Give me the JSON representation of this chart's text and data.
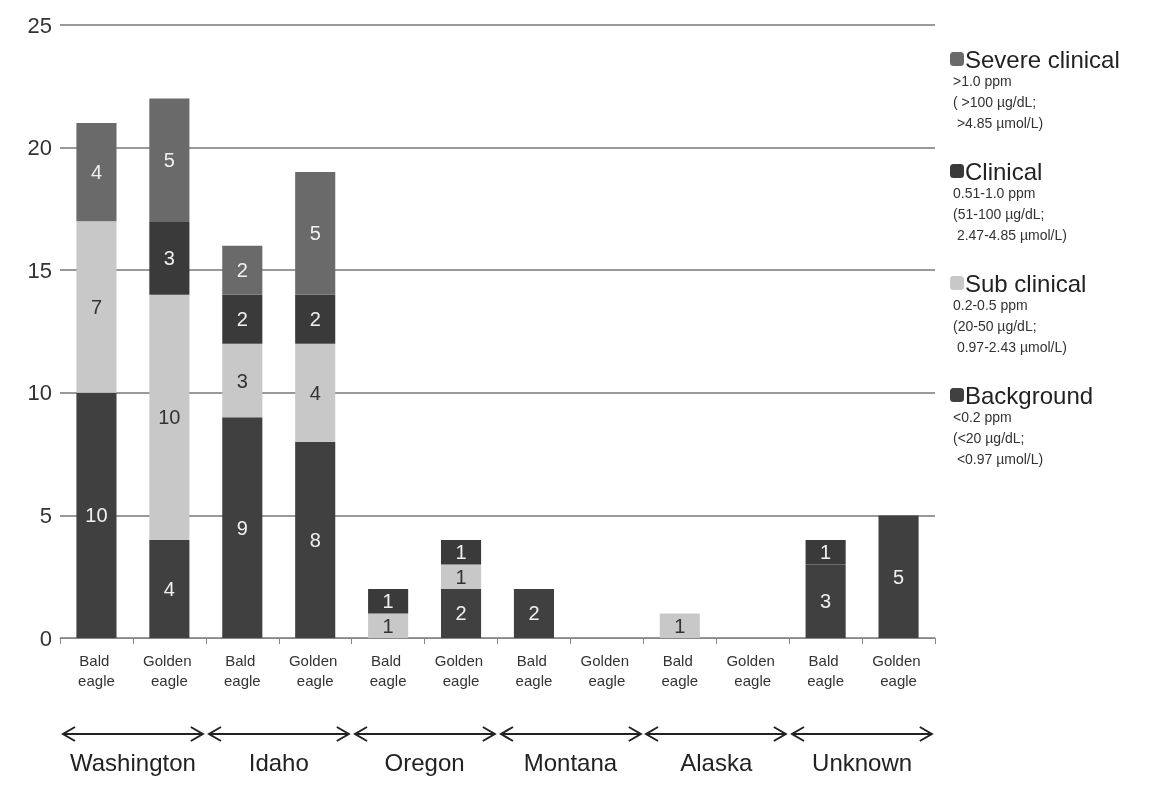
{
  "chart_data": {
    "type": "bar",
    "stacked": true,
    "data_labels": true,
    "grid": "y",
    "legend": "right",
    "categories": [
      "Bald eagle",
      "Golden eagle",
      "Bald eagle",
      "Golden eagle",
      "Bald eagle",
      "Golden eagle",
      "Bald eagle",
      "Golden eagle",
      "Bald eagle",
      "Golden eagle",
      "Bald eagle",
      "Golden eagle"
    ],
    "series": [
      {
        "name": "Background",
        "color": "#404040",
        "values": [
          10,
          4,
          9,
          8,
          null,
          2,
          2,
          null,
          null,
          null,
          3,
          5
        ]
      },
      {
        "name": "Sub clinical",
        "color": "#c8c8c8",
        "values": [
          7,
          10,
          3,
          4,
          1,
          1,
          null,
          null,
          1,
          null,
          null,
          null
        ]
      },
      {
        "name": "Clinical",
        "color": "#3a3a3a",
        "values": [
          null,
          3,
          2,
          2,
          1,
          1,
          null,
          null,
          null,
          null,
          1,
          null
        ]
      },
      {
        "name": "Severe clinical",
        "color": "#6a6a6a",
        "values": [
          4,
          5,
          2,
          5,
          null,
          null,
          null,
          null,
          null,
          null,
          null,
          null
        ]
      }
    ],
    "ylim": [
      0,
      25
    ],
    "yticks": [
      0,
      5,
      10,
      15,
      20,
      25
    ],
    "annotations": [
      "Washington",
      "Idaho",
      "Oregon",
      "Montana",
      "Alaska",
      "Unknown",
      ">1.0 ppm\n( >100 µg/dL;\n >4.85 µmol/L)",
      "0.51-1.0 ppm\n(51-100 µg/dL;\n 2.47-4.85 µmol/L)",
      "0.2-0.5 ppm\n(20-50 µg/dL;\n 0.97-2.43 µmol/L)",
      "<0.2 ppm\n(<20 µg/dL;\n <0.97 µmol/L)"
    ]
  }
}
